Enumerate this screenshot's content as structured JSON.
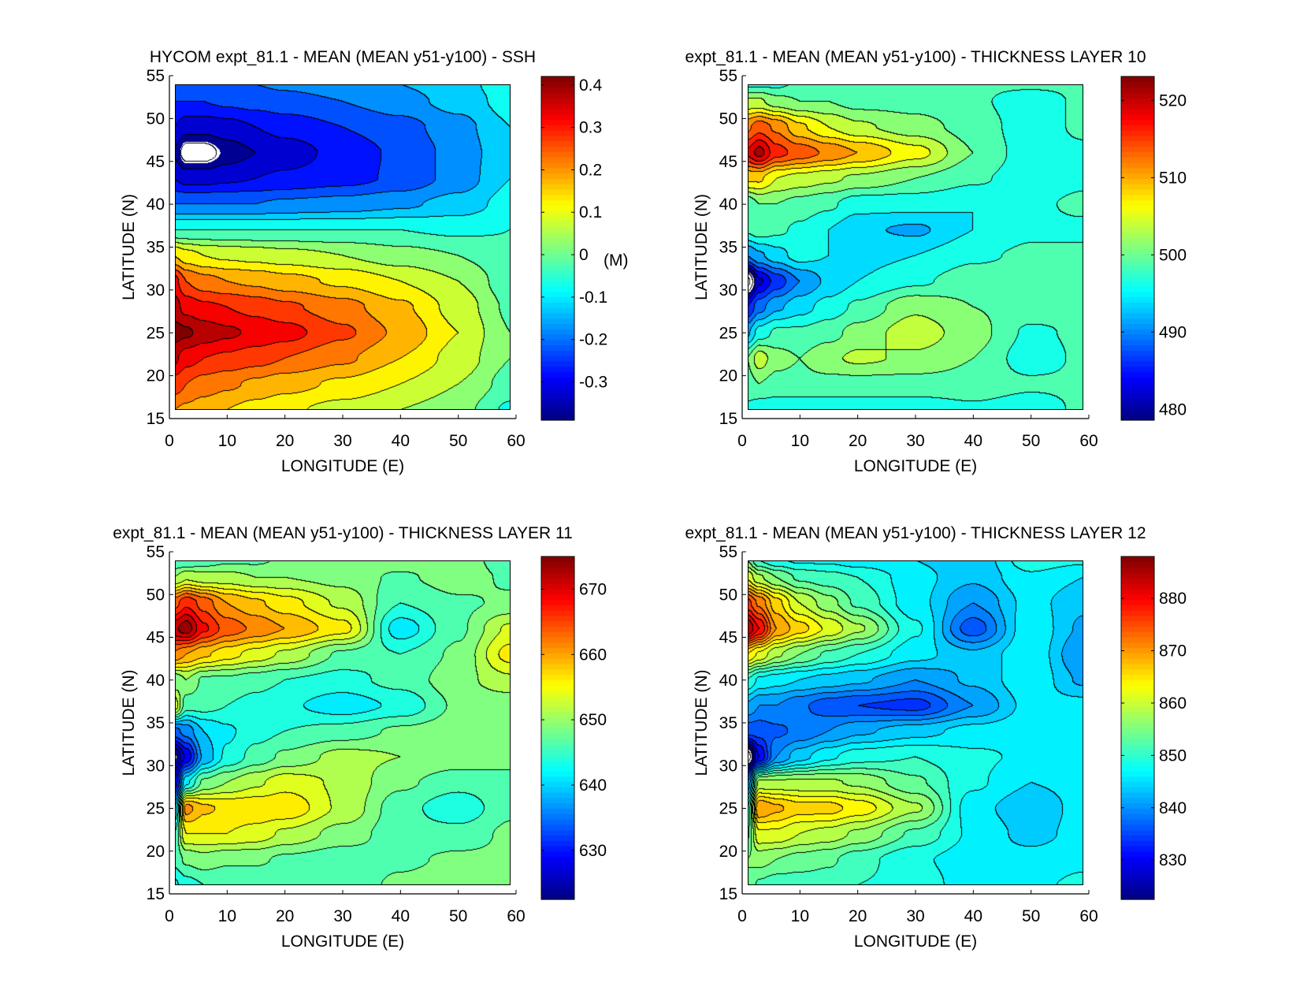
{
  "chart_data": [
    {
      "type": "heatmap",
      "subtype": "filled-contour",
      "title": "HYCOM expt_81.1 - MEAN (MEAN y51-y100) - SSH",
      "xlabel": "LONGITUDE (E)",
      "ylabel": "LATITUDE (N)",
      "xlim": [
        0,
        60
      ],
      "ylim": [
        15,
        55
      ],
      "xticks": [
        "0",
        "10",
        "20",
        "30",
        "40",
        "50",
        "60"
      ],
      "yticks": [
        "15",
        "20",
        "25",
        "30",
        "35",
        "40",
        "45",
        "50",
        "55"
      ],
      "contour_interval": 0.05,
      "colorbar": {
        "colormap": "jet",
        "range": [
          -0.39,
          0.42
        ],
        "ticks": [
          0.4,
          0.3,
          0.2,
          0.1,
          0,
          -0.1,
          -0.2,
          -0.3
        ],
        "tick_labels": [
          "0.4",
          "0.3",
          "0.2",
          "0.1",
          "0",
          "-0.1",
          "-0.2",
          "-0.3"
        ],
        "unit_label": "(M)"
      },
      "grid": {
        "lon": [
          1,
          3,
          6,
          10,
          15,
          20,
          30,
          40,
          50,
          59
        ],
        "lat": [
          16,
          19,
          22,
          25,
          28,
          31,
          34,
          37,
          40,
          43,
          46,
          49,
          52,
          54
        ],
        "values": [
          [
            0.2,
            0.19,
            0.17,
            0.15,
            0.13,
            0.11,
            0.08,
            0.05,
            0.02,
            -0.06
          ],
          [
            0.28,
            0.25,
            0.23,
            0.21,
            0.19,
            0.17,
            0.14,
            0.1,
            0.05,
            -0.02
          ],
          [
            0.36,
            0.32,
            0.3,
            0.29,
            0.27,
            0.25,
            0.21,
            0.15,
            0.08,
            0.0
          ],
          [
            0.42,
            0.41,
            0.38,
            0.36,
            0.34,
            0.32,
            0.26,
            0.19,
            0.1,
            0.0
          ],
          [
            0.37,
            0.33,
            0.31,
            0.3,
            0.28,
            0.26,
            0.22,
            0.16,
            0.08,
            -0.01
          ],
          [
            0.32,
            0.25,
            0.22,
            0.2,
            0.19,
            0.17,
            0.14,
            0.1,
            0.05,
            -0.03
          ],
          [
            0.15,
            0.12,
            0.1,
            0.09,
            0.08,
            0.07,
            0.05,
            0.02,
            0.0,
            -0.04
          ],
          [
            -0.05,
            -0.05,
            -0.05,
            -0.05,
            -0.05,
            -0.05,
            -0.05,
            -0.05,
            -0.06,
            -0.05
          ],
          [
            -0.2,
            -0.2,
            -0.2,
            -0.2,
            -0.2,
            -0.19,
            -0.18,
            -0.16,
            -0.13,
            -0.08
          ],
          [
            -0.3,
            -0.32,
            -0.32,
            -0.31,
            -0.3,
            -0.29,
            -0.27,
            -0.24,
            -0.18,
            -0.1
          ],
          [
            -0.36,
            -0.43,
            -0.43,
            -0.38,
            -0.35,
            -0.33,
            -0.28,
            -0.24,
            -0.18,
            -0.11
          ],
          [
            -0.3,
            -0.33,
            -0.33,
            -0.32,
            -0.3,
            -0.28,
            -0.25,
            -0.22,
            -0.17,
            -0.1
          ],
          [
            -0.25,
            -0.25,
            -0.25,
            -0.24,
            -0.23,
            -0.22,
            -0.2,
            -0.17,
            -0.13,
            -0.08
          ],
          [
            -0.2,
            -0.2,
            -0.2,
            -0.2,
            -0.2,
            -0.19,
            -0.17,
            -0.15,
            -0.12,
            -0.07
          ]
        ]
      }
    },
    {
      "type": "heatmap",
      "subtype": "filled-contour",
      "title": "expt_81.1 - MEAN (MEAN y51-y100) - THICKNESS LAYER 10",
      "xlabel": "LONGITUDE (E)",
      "ylabel": "LATITUDE (N)",
      "xlim": [
        0,
        60
      ],
      "ylim": [
        15,
        55
      ],
      "xticks": [
        "0",
        "10",
        "20",
        "30",
        "40",
        "50",
        "60"
      ],
      "yticks": [
        "15",
        "20",
        "25",
        "30",
        "35",
        "40",
        "45",
        "50",
        "55"
      ],
      "contour_interval": 2.5,
      "colorbar": {
        "colormap": "jet",
        "range": [
          478.6,
          523.1
        ],
        "ticks": [
          520,
          510,
          500,
          490,
          480
        ],
        "tick_labels": [
          "520",
          "510",
          "500",
          "490",
          "480"
        ],
        "unit_label": ""
      },
      "grid": {
        "lon": [
          1,
          3,
          6,
          10,
          15,
          20,
          30,
          40,
          50,
          59
        ],
        "lat": [
          16,
          19,
          22,
          25,
          28,
          31,
          34,
          37,
          40,
          43,
          46,
          49,
          52,
          54
        ],
        "values": [
          [
            497,
            496,
            496,
            496,
            496,
            496,
            496,
            497,
            496,
            498
          ],
          [
            499,
            500,
            499,
            499,
            499,
            499,
            499,
            499,
            498,
            498
          ],
          [
            500,
            504,
            501,
            500,
            502,
            503,
            502,
            500,
            496,
            498
          ],
          [
            492,
            496,
            498,
            498,
            499,
            501,
            504,
            501,
            497,
            498
          ],
          [
            485,
            489,
            492,
            494,
            496,
            498,
            502,
            500,
            499,
            498
          ],
          [
            474,
            482,
            486,
            490,
            493,
            495,
            497,
            499,
            499,
            498
          ],
          [
            490,
            492,
            494,
            496,
            495,
            494,
            495,
            497,
            498,
            498
          ],
          [
            498,
            499,
            498,
            497,
            495,
            493,
            492,
            495,
            497,
            497
          ],
          [
            498,
            500,
            500,
            499,
            498,
            496,
            496,
            495,
            497,
            498
          ],
          [
            508,
            508,
            505,
            504,
            503,
            502,
            500,
            498,
            496,
            497
          ],
          [
            518,
            521,
            516,
            514,
            512,
            510,
            506,
            500,
            496,
            497
          ],
          [
            512,
            514,
            512,
            508,
            505,
            503,
            501,
            499,
            496,
            498
          ],
          [
            503,
            503,
            501,
            500,
            500,
            499,
            499,
            498,
            496,
            498
          ],
          [
            497,
            497,
            497,
            498,
            498,
            498,
            498,
            498,
            498,
            498
          ]
        ]
      }
    },
    {
      "type": "heatmap",
      "subtype": "filled-contour",
      "title": "expt_81.1 - MEAN (MEAN y51-y100) - THICKNESS LAYER 11",
      "xlabel": "LONGITUDE (E)",
      "ylabel": "LATITUDE (N)",
      "xlim": [
        0,
        60
      ],
      "ylim": [
        15,
        55
      ],
      "xticks": [
        "0",
        "10",
        "20",
        "30",
        "40",
        "50",
        "60"
      ],
      "yticks": [
        "15",
        "20",
        "25",
        "30",
        "35",
        "40",
        "45",
        "50",
        "55"
      ],
      "contour_interval": 2.5,
      "colorbar": {
        "colormap": "jet",
        "range": [
          622.5,
          675
        ],
        "ticks": [
          670,
          660,
          650,
          640,
          630
        ],
        "tick_labels": [
          "670",
          "660",
          "650",
          "640",
          "630"
        ],
        "unit_label": ""
      },
      "grid": {
        "lon": [
          1,
          3,
          6,
          10,
          15,
          20,
          30,
          40,
          50,
          59
        ],
        "lat": [
          16,
          19,
          22,
          25,
          28,
          31,
          34,
          37,
          40,
          43,
          46,
          49,
          52,
          54
        ],
        "values": [
          [
            642,
            644,
            645,
            645,
            645,
            645,
            646,
            648,
            649,
            649
          ],
          [
            646,
            648,
            649,
            648,
            648,
            647,
            646,
            647,
            648,
            648
          ],
          [
            645,
            655,
            655,
            655,
            654,
            652,
            649,
            646,
            646,
            648
          ],
          [
            640,
            661,
            658,
            657,
            657,
            657,
            652,
            646,
            643,
            647
          ],
          [
            628,
            642,
            648,
            650,
            652,
            654,
            652,
            648,
            646,
            647
          ],
          [
            622,
            628,
            638,
            643,
            646,
            648,
            651,
            650,
            649,
            648
          ],
          [
            634,
            636,
            640,
            642,
            644,
            645,
            646,
            648,
            649,
            649
          ],
          [
            654,
            646,
            646,
            645,
            644,
            643,
            641,
            643,
            648,
            648
          ],
          [
            648,
            650,
            647,
            647,
            646,
            645,
            644,
            646,
            649,
            652
          ],
          [
            662,
            660,
            658,
            656,
            654,
            652,
            647,
            645,
            648,
            656
          ],
          [
            672,
            674,
            668,
            664,
            662,
            660,
            656,
            641,
            647,
            653
          ],
          [
            664,
            667,
            664,
            660,
            658,
            656,
            652,
            645,
            647,
            648
          ],
          [
            650,
            652,
            651,
            651,
            650,
            650,
            649,
            647,
            649,
            647
          ],
          [
            645,
            645,
            646,
            647,
            647,
            648,
            648,
            649,
            649,
            646
          ]
        ]
      }
    },
    {
      "type": "heatmap",
      "subtype": "filled-contour",
      "title": "expt_81.1 - MEAN (MEAN y51-y100) - THICKNESS LAYER 12",
      "xlabel": "LONGITUDE (E)",
      "ylabel": "LATITUDE (N)",
      "xlim": [
        0,
        60
      ],
      "ylim": [
        15,
        55
      ],
      "xticks": [
        "0",
        "10",
        "20",
        "30",
        "40",
        "50",
        "60"
      ],
      "yticks": [
        "15",
        "20",
        "25",
        "30",
        "35",
        "40",
        "45",
        "50",
        "55"
      ],
      "contour_interval": 2.5,
      "colorbar": {
        "colormap": "jet",
        "range": [
          822.5,
          888
        ],
        "ticks": [
          880,
          870,
          860,
          850,
          840,
          830
        ],
        "tick_labels": [
          "880",
          "870",
          "860",
          "850",
          "840",
          "830"
        ],
        "unit_label": ""
      },
      "grid": {
        "lon": [
          1,
          3,
          6,
          10,
          15,
          20,
          30,
          40,
          50,
          59
        ],
        "lat": [
          16,
          19,
          22,
          25,
          28,
          31,
          34,
          37,
          40,
          43,
          46,
          49,
          52,
          54
        ],
        "values": [
          [
            855,
            852,
            851,
            851,
            851,
            850,
            849,
            846,
            847,
            848
          ],
          [
            855,
            856,
            855,
            854,
            853,
            851,
            848,
            846,
            846,
            847
          ],
          [
            852,
            862,
            862,
            860,
            859,
            857,
            852,
            847,
            844,
            846
          ],
          [
            850,
            870,
            868,
            866,
            866,
            864,
            858,
            846,
            843,
            846
          ],
          [
            840,
            858,
            858,
            858,
            858,
            857,
            853,
            848,
            845,
            846
          ],
          [
            818,
            830,
            840,
            844,
            847,
            849,
            850,
            848,
            847,
            847
          ],
          [
            836,
            836,
            837,
            838,
            840,
            842,
            844,
            846,
            847,
            847
          ],
          [
            842,
            840,
            840,
            838,
            836,
            835,
            834,
            840,
            846,
            846
          ],
          [
            850,
            847,
            846,
            845,
            844,
            843,
            840,
            843,
            847,
            842
          ],
          [
            865,
            862,
            858,
            855,
            852,
            850,
            846,
            843,
            847,
            840
          ],
          [
            885,
            880,
            870,
            866,
            862,
            858,
            848,
            836,
            847,
            842
          ],
          [
            876,
            872,
            866,
            860,
            856,
            852,
            846,
            840,
            846,
            843
          ],
          [
            862,
            858,
            855,
            852,
            851,
            850,
            846,
            843,
            847,
            845
          ],
          [
            855,
            850,
            848,
            847,
            847,
            846,
            845,
            843,
            849,
            848
          ]
        ]
      }
    }
  ]
}
